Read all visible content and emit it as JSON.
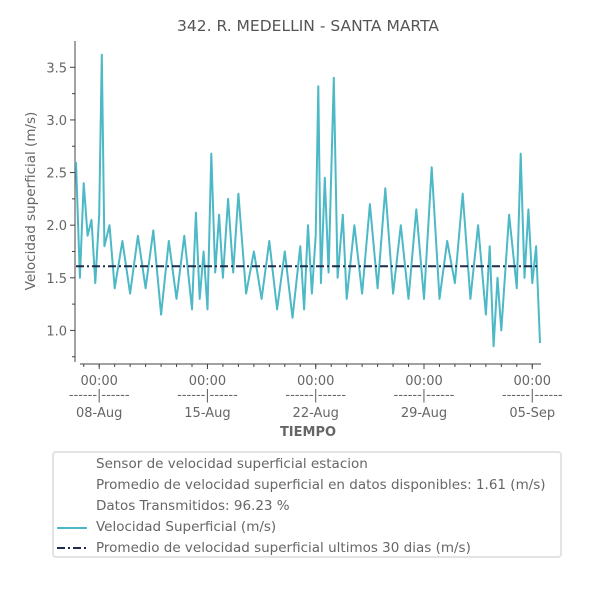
{
  "chart_data": {
    "type": "line",
    "title": "342. R. MEDELLIN - SANTA MARTA",
    "xlabel": "TIEMPO",
    "ylabel": "Velocidad superficial (m/s)",
    "ylim": [
      0.7,
      3.75
    ],
    "yticks": [
      1.0,
      1.5,
      2.0,
      2.5,
      3.0,
      3.5
    ],
    "ytick_labels": [
      "1.0",
      "1.5",
      "2.0",
      "2.5",
      "3.0",
      "3.5"
    ],
    "x_range": [
      "2023-08-06T12:00",
      "2023-09-05T12:00"
    ],
    "xticks": [
      {
        "date": "2023-08-08",
        "label_time": "00:00",
        "label_sep": "------|------",
        "label_date": "08-Aug"
      },
      {
        "date": "2023-08-15",
        "label_time": "00:00",
        "label_sep": "------|------",
        "label_date": "15-Aug"
      },
      {
        "date": "2023-08-22",
        "label_time": "00:00",
        "label_sep": "------|------",
        "label_date": "22-Aug"
      },
      {
        "date": "2023-08-29",
        "label_time": "00:00",
        "label_sep": "------|------",
        "label_date": "29-Aug"
      },
      {
        "date": "2023-09-05",
        "label_time": "00:00",
        "label_sep": "------|------",
        "label_date": "05-Sep"
      }
    ],
    "series": [
      {
        "name": "Velocidad Superficial (m/s)",
        "color": "#4db8c6",
        "style": "solid",
        "points": [
          [
            "2023-08-06T12:00",
            2.6
          ],
          [
            "2023-08-06T18:00",
            1.5
          ],
          [
            "2023-08-07T00:00",
            2.4
          ],
          [
            "2023-08-07T06:00",
            1.9
          ],
          [
            "2023-08-07T12:00",
            2.05
          ],
          [
            "2023-08-07T18:00",
            1.45
          ],
          [
            "2023-08-08T00:00",
            2.1
          ],
          [
            "2023-08-08T04:00",
            3.62
          ],
          [
            "2023-08-08T08:00",
            1.8
          ],
          [
            "2023-08-08T16:00",
            2.0
          ],
          [
            "2023-08-09T00:00",
            1.4
          ],
          [
            "2023-08-09T12:00",
            1.85
          ],
          [
            "2023-08-10T00:00",
            1.35
          ],
          [
            "2023-08-10T12:00",
            1.9
          ],
          [
            "2023-08-11T00:00",
            1.4
          ],
          [
            "2023-08-11T12:00",
            1.95
          ],
          [
            "2023-08-12T00:00",
            1.15
          ],
          [
            "2023-08-12T12:00",
            1.85
          ],
          [
            "2023-08-13T00:00",
            1.3
          ],
          [
            "2023-08-13T12:00",
            1.9
          ],
          [
            "2023-08-14T00:00",
            1.2
          ],
          [
            "2023-08-14T06:00",
            2.12
          ],
          [
            "2023-08-14T12:00",
            1.3
          ],
          [
            "2023-08-14T18:00",
            1.75
          ],
          [
            "2023-08-15T00:00",
            1.2
          ],
          [
            "2023-08-15T06:00",
            2.68
          ],
          [
            "2023-08-15T12:00",
            1.55
          ],
          [
            "2023-08-15T18:00",
            2.1
          ],
          [
            "2023-08-16T00:00",
            1.5
          ],
          [
            "2023-08-16T08:00",
            2.25
          ],
          [
            "2023-08-16T16:00",
            1.55
          ],
          [
            "2023-08-17T00:00",
            2.3
          ],
          [
            "2023-08-17T12:00",
            1.35
          ],
          [
            "2023-08-18T00:00",
            1.75
          ],
          [
            "2023-08-18T12:00",
            1.3
          ],
          [
            "2023-08-19T00:00",
            1.85
          ],
          [
            "2023-08-19T12:00",
            1.2
          ],
          [
            "2023-08-20T00:00",
            1.75
          ],
          [
            "2023-08-20T12:00",
            1.12
          ],
          [
            "2023-08-21T00:00",
            1.8
          ],
          [
            "2023-08-21T06:00",
            1.2
          ],
          [
            "2023-08-21T12:00",
            2.0
          ],
          [
            "2023-08-21T18:00",
            1.35
          ],
          [
            "2023-08-22T00:00",
            1.9
          ],
          [
            "2023-08-22T04:00",
            3.32
          ],
          [
            "2023-08-22T08:00",
            1.45
          ],
          [
            "2023-08-22T14:00",
            2.45
          ],
          [
            "2023-08-22T20:00",
            1.55
          ],
          [
            "2023-08-23T04:00",
            3.4
          ],
          [
            "2023-08-23T10:00",
            1.5
          ],
          [
            "2023-08-23T18:00",
            2.1
          ],
          [
            "2023-08-24T00:00",
            1.3
          ],
          [
            "2023-08-24T12:00",
            2.0
          ],
          [
            "2023-08-25T00:00",
            1.35
          ],
          [
            "2023-08-25T12:00",
            2.2
          ],
          [
            "2023-08-26T00:00",
            1.4
          ],
          [
            "2023-08-26T12:00",
            2.35
          ],
          [
            "2023-08-27T00:00",
            1.35
          ],
          [
            "2023-08-27T12:00",
            2.0
          ],
          [
            "2023-08-28T00:00",
            1.3
          ],
          [
            "2023-08-28T12:00",
            2.15
          ],
          [
            "2023-08-29T00:00",
            1.3
          ],
          [
            "2023-08-29T12:00",
            2.55
          ],
          [
            "2023-08-30T00:00",
            1.3
          ],
          [
            "2023-08-30T12:00",
            1.85
          ],
          [
            "2023-08-31T00:00",
            1.45
          ],
          [
            "2023-08-31T12:00",
            2.3
          ],
          [
            "2023-09-01T00:00",
            1.3
          ],
          [
            "2023-09-01T12:00",
            2.0
          ],
          [
            "2023-09-02T00:00",
            1.15
          ],
          [
            "2023-09-02T06:00",
            1.8
          ],
          [
            "2023-09-02T12:00",
            0.85
          ],
          [
            "2023-09-02T18:00",
            1.5
          ],
          [
            "2023-09-03T00:00",
            1.0
          ],
          [
            "2023-09-03T12:00",
            2.1
          ],
          [
            "2023-09-04T00:00",
            1.4
          ],
          [
            "2023-09-04T06:00",
            2.68
          ],
          [
            "2023-09-04T12:00",
            1.5
          ],
          [
            "2023-09-04T18:00",
            2.15
          ],
          [
            "2023-09-05T00:00",
            1.45
          ],
          [
            "2023-09-05T06:00",
            1.8
          ],
          [
            "2023-09-05T12:00",
            0.88
          ]
        ]
      },
      {
        "name": "Promedio de velocidad superficial ultimos 30 dias (m/s)",
        "color": "#1f2b4a",
        "style": "dashdot",
        "points": [
          [
            "2023-08-06T12:00",
            1.61
          ],
          [
            "2023-09-05T12:00",
            1.61
          ]
        ]
      }
    ],
    "legend": {
      "placement": "bottom",
      "entries": [
        {
          "label": "Sensor de velocidad superficial estacion",
          "marker": "none"
        },
        {
          "label": "Promedio de velocidad superficial en datos disponibles: 1.61 (m/s)",
          "marker": "none"
        },
        {
          "label": "Datos Transmitidos: 96.23 %",
          "marker": "none"
        },
        {
          "label": "Velocidad Superficial (m/s)",
          "marker": "solid",
          "color": "#4db8c6"
        },
        {
          "label": "Promedio de velocidad superficial ultimos 30 dias (m/s)",
          "marker": "dashdot",
          "color": "#1f2b4a"
        }
      ]
    },
    "grid": false
  }
}
